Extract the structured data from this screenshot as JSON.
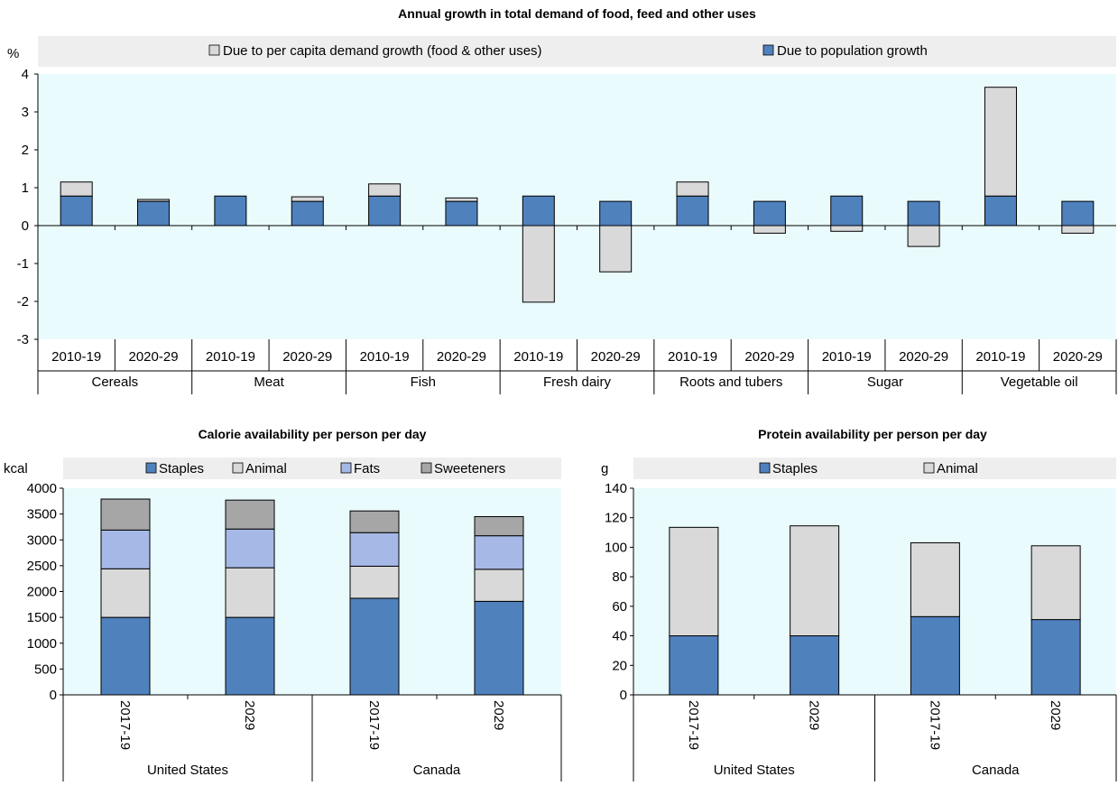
{
  "colors": {
    "plot_bg": "#EAFBFD",
    "legend_bg": "#EEEEEE",
    "population": "#4F81BD",
    "per_capita": "#D9D9D9",
    "staples": "#4F81BD",
    "animal": "#D9D9D9",
    "fats": "#A6B8E6",
    "sweeteners": "#A6A6A6"
  },
  "chart_data": [
    {
      "type": "bar",
      "title": "Annual growth in total demand of food, feed and other uses",
      "ylabel": "%",
      "ylim": [
        -3,
        4
      ],
      "yticks": [
        4,
        3,
        2,
        1,
        0,
        -1,
        -2,
        -3
      ],
      "groups": [
        "Cereals",
        "Meat",
        "Fish",
        "Fresh dairy",
        "Roots and tubers",
        "Sugar",
        "Vegetable oil"
      ],
      "categories": [
        "2010-19",
        "2020-29",
        "2010-19",
        "2020-29",
        "2010-19",
        "2020-29",
        "2010-19",
        "2020-29",
        "2010-19",
        "2020-29",
        "2010-19",
        "2020-29",
        "2010-19",
        "2020-29"
      ],
      "series": [
        {
          "name": "Due to population growth",
          "values": [
            0.78,
            0.64,
            0.78,
            0.64,
            0.78,
            0.64,
            0.78,
            0.64,
            0.78,
            0.64,
            0.78,
            0.64,
            0.78,
            0.64
          ]
        },
        {
          "name": "Due to per capita demand growth (food & other uses)",
          "values": [
            0.37,
            0.05,
            0.0,
            0.12,
            0.32,
            0.09,
            -2.02,
            -1.22,
            0.37,
            -0.2,
            -0.15,
            -0.55,
            2.87,
            -0.2
          ]
        }
      ],
      "legend_order": [
        "Due to per capita demand growth (food & other uses)",
        "Due to population growth"
      ]
    },
    {
      "type": "bar",
      "title": "Calorie availability per person per day",
      "ylabel": "kcal",
      "ylim": [
        0,
        4000
      ],
      "yticks": [
        4000,
        3500,
        3000,
        2500,
        2000,
        1500,
        1000,
        500,
        0
      ],
      "groups": [
        "United States",
        "Canada"
      ],
      "categories": [
        "2017-19",
        "2029",
        "2017-19",
        "2029"
      ],
      "series": [
        {
          "name": "Staples",
          "values": [
            1500,
            1500,
            1870,
            1810
          ]
        },
        {
          "name": "Animal",
          "values": [
            940,
            960,
            620,
            620
          ]
        },
        {
          "name": "Fats",
          "values": [
            750,
            750,
            650,
            650
          ]
        },
        {
          "name": "Sweeteners",
          "values": [
            600,
            560,
            420,
            370
          ]
        }
      ]
    },
    {
      "type": "bar",
      "title": "Protein availability per person per day",
      "ylabel": "g",
      "ylim": [
        0,
        140
      ],
      "yticks": [
        140,
        120,
        100,
        80,
        60,
        40,
        20,
        0
      ],
      "groups": [
        "United States",
        "Canada"
      ],
      "categories": [
        "2017-19",
        "2029",
        "2017-19",
        "2029"
      ],
      "series": [
        {
          "name": "Staples",
          "values": [
            40,
            40,
            53,
            51
          ]
        },
        {
          "name": "Animal",
          "values": [
            73.5,
            74.5,
            50,
            50
          ]
        }
      ]
    }
  ]
}
